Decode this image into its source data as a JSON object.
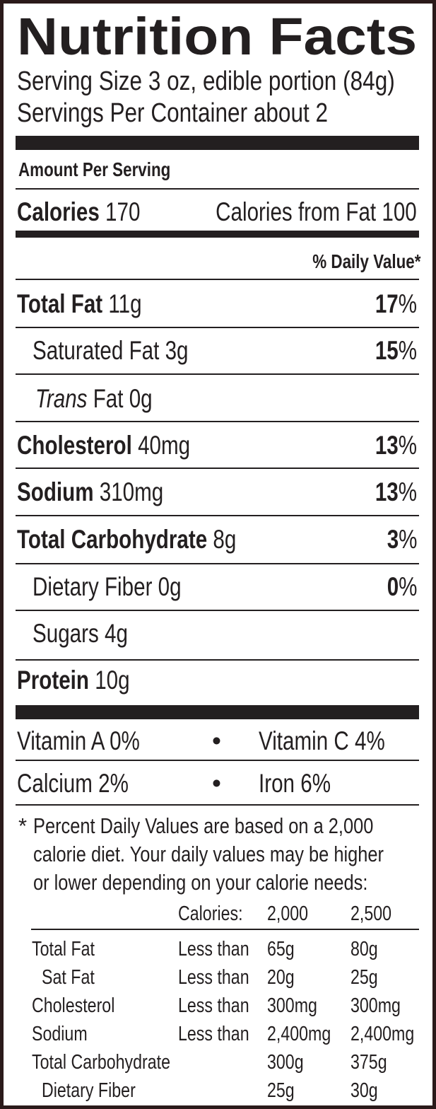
{
  "title": "Nutrition Facts",
  "serving_size": "Serving Size 3 oz, edible portion (84g)",
  "servings_per_container": "Servings Per Container about 2",
  "amount_per_serving": "Amount Per Serving",
  "calories": {
    "label": "Calories",
    "value": "170",
    "from_fat_label": "Calories from Fat",
    "from_fat_value": "100"
  },
  "daily_value_header": "% Daily Value*",
  "nutrients": [
    {
      "name": "Total Fat",
      "amount": "11g",
      "dv": "17",
      "bold": true
    },
    {
      "name": "Saturated Fat",
      "amount": "3g",
      "dv": "15",
      "bold": false
    },
    {
      "name": "Trans",
      "name_suffix": "Fat",
      "amount": "0g",
      "dv": "",
      "bold": false
    },
    {
      "name": "Cholesterol",
      "amount": "40mg",
      "dv": "13",
      "bold": true
    },
    {
      "name": "Sodium",
      "amount": "310mg",
      "dv": "13",
      "bold": true
    },
    {
      "name": "Total Carbohydrate",
      "amount": "8g",
      "dv": "3",
      "bold": true
    },
    {
      "name": "Dietary Fiber",
      "amount": "0g",
      "dv": "0",
      "bold": false
    },
    {
      "name": "Sugars",
      "amount": "4g",
      "dv": "",
      "bold": false
    },
    {
      "name": "Protein",
      "amount": "10g",
      "dv": "",
      "bold": true
    }
  ],
  "percent_sign": "%",
  "vitamins": [
    {
      "left": "Vitamin A 0%",
      "bullet": "•",
      "right": "Vitamin C 4%"
    },
    {
      "left": "Calcium 2%",
      "bullet": "•",
      "right": "Iron 6%"
    }
  ],
  "footnote": {
    "star": "*",
    "lines": [
      "Percent Daily Values are based on a 2,000",
      "calorie diet. Your daily values may be higher",
      "or lower depending on your calorie needs:"
    ]
  },
  "dv_table": {
    "header": {
      "label": "Calories:",
      "col1": "2,000",
      "col2": "2,500"
    },
    "rows": [
      {
        "name": "Total Fat",
        "qualifier": "Less than",
        "col1": "65g",
        "col2": "80g"
      },
      {
        "name": "Sat Fat",
        "qualifier": "Less than",
        "col1": "20g",
        "col2": "25g"
      },
      {
        "name": "Cholesterol",
        "qualifier": "Less than",
        "col1": "300mg",
        "col2": "300mg"
      },
      {
        "name": "Sodium",
        "qualifier": "Less than",
        "col1": "2,400mg",
        "col2": "2,400mg"
      },
      {
        "name": "Total Carbohydrate",
        "qualifier": "",
        "col1": "300g",
        "col2": "375g"
      },
      {
        "name": "Dietary Fiber",
        "qualifier": "",
        "col1": "25g",
        "col2": "30g"
      }
    ]
  }
}
